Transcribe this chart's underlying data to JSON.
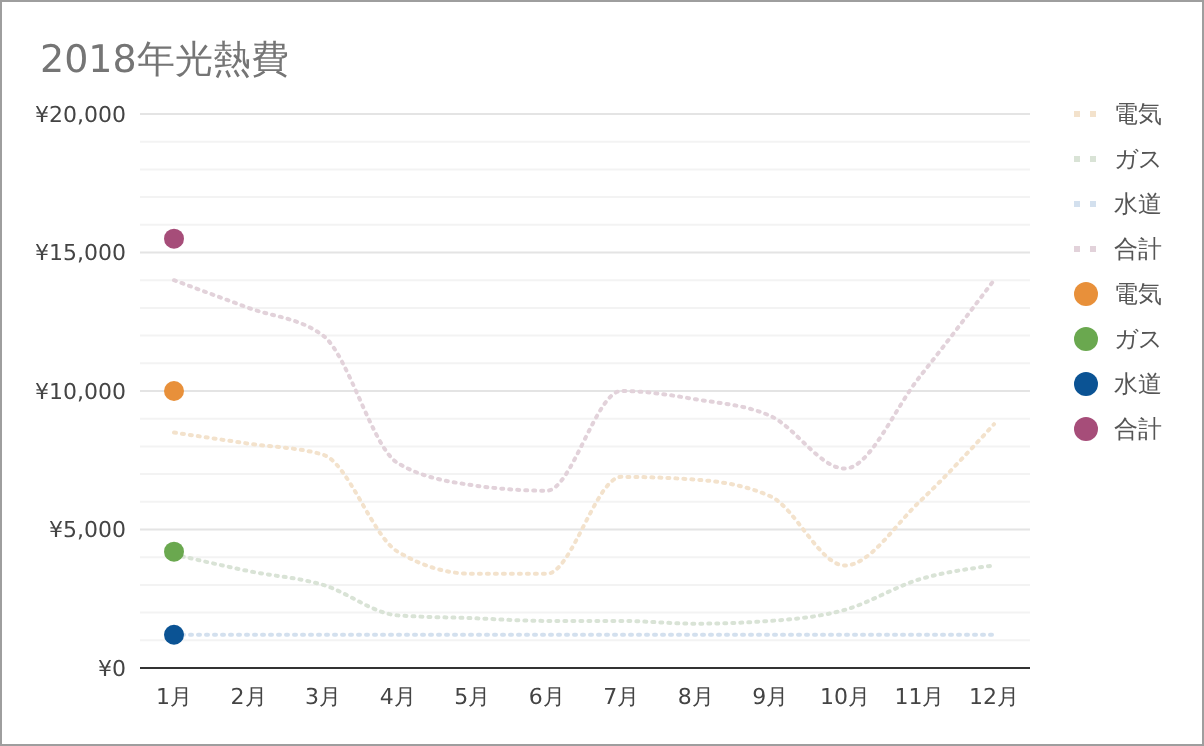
{
  "chart_data": {
    "type": "line",
    "title": "2018年光熱費",
    "categories": [
      "1月",
      "2月",
      "3月",
      "4月",
      "5月",
      "6月",
      "7月",
      "8月",
      "9月",
      "10月",
      "11月",
      "12月"
    ],
    "series": [
      {
        "name": "電気",
        "color": "#f3e2cc",
        "line_style": "dotted",
        "marker": "none",
        "values": [
          8500,
          8100,
          7700,
          4200,
          3400,
          3400,
          6900,
          6800,
          6200,
          3700,
          6000,
          8800
        ]
      },
      {
        "name": "ガス",
        "color": "#d9e3d6",
        "line_style": "dotted",
        "marker": "none",
        "values": [
          4100,
          3500,
          3000,
          1900,
          1800,
          1700,
          1700,
          1600,
          1700,
          2100,
          3200,
          3700
        ]
      },
      {
        "name": "水道",
        "color": "#d3e0ee",
        "line_style": "dotted",
        "marker": "none",
        "values": [
          1200,
          1200,
          1200,
          1200,
          1200,
          1200,
          1200,
          1200,
          1200,
          1200,
          1200,
          1200
        ]
      },
      {
        "name": "合計",
        "color": "#e2d2da",
        "line_style": "dotted",
        "marker": "none",
        "values": [
          14000,
          13000,
          12000,
          7400,
          6600,
          6400,
          10000,
          9700,
          9100,
          7200,
          10500,
          14000
        ]
      },
      {
        "name": "電気",
        "type": "scatter",
        "x": [
          "1月"
        ],
        "color": "#e8903a",
        "marker": "circle",
        "values": [
          10000
        ]
      },
      {
        "name": "ガス",
        "type": "scatter",
        "x": [
          "1月"
        ],
        "color": "#6aa84f",
        "marker": "circle",
        "values": [
          4200
        ]
      },
      {
        "name": "水道",
        "type": "scatter",
        "x": [
          "1月"
        ],
        "color": "#0b5394",
        "marker": "circle",
        "values": [
          1200
        ]
      },
      {
        "name": "合計",
        "type": "scatter",
        "x": [
          "1月"
        ],
        "color": "#a64d79",
        "marker": "circle",
        "values": [
          15500
        ]
      }
    ],
    "ylim": [
      0,
      20000
    ],
    "yticks": [
      {
        "value": 0,
        "label": "¥0"
      },
      {
        "value": 1000,
        "label": null
      },
      {
        "value": 2000,
        "label": null
      },
      {
        "value": 3000,
        "label": null
      },
      {
        "value": 4000,
        "label": null
      },
      {
        "value": 5000,
        "label": "¥5,000"
      },
      {
        "value": 6000,
        "label": null
      },
      {
        "value": 7000,
        "label": null
      },
      {
        "value": 8000,
        "label": null
      },
      {
        "value": 9000,
        "label": null
      },
      {
        "value": 10000,
        "label": "¥10,000"
      },
      {
        "value": 11000,
        "label": null
      },
      {
        "value": 12000,
        "label": null
      },
      {
        "value": 13000,
        "label": null
      },
      {
        "value": 14000,
        "label": null
      },
      {
        "value": 15000,
        "label": "¥15,000"
      },
      {
        "value": 16000,
        "label": null
      },
      {
        "value": 17000,
        "label": null
      },
      {
        "value": 18000,
        "label": null
      },
      {
        "value": 19000,
        "label": null
      },
      {
        "value": 20000,
        "label": "¥20,000"
      }
    ],
    "grid": "y",
    "legend": "right"
  }
}
